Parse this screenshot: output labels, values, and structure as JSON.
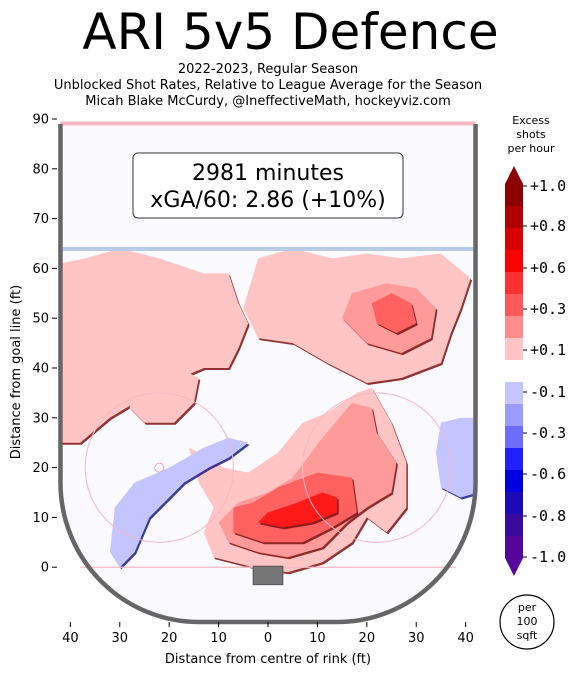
{
  "header": {
    "title": "ARI 5v5 Defence",
    "subtitle_1": "2022-2023, Regular Season",
    "subtitle_2": "Unblocked Shot Rates, Relative to League Average for the Season",
    "subtitle_3": "Micah Blake McCurdy, @IneffectiveMath, hockeyviz.com"
  },
  "annotation": {
    "line_1": "2981 minutes",
    "line_2": "xGA/60: 2.86 (+10%)"
  },
  "colorbar": {
    "title_1": "Excess",
    "title_2": "shots",
    "title_3": "per hour",
    "tick_labels": [
      "+1.0",
      "+0.8",
      "+0.6",
      "+0.3",
      "+0.1",
      "-0.1",
      "-0.3",
      "-0.6",
      "-0.8",
      "-1.0"
    ],
    "unit_1": "per",
    "unit_2": "100",
    "unit_3": "sqft",
    "colors_pos": [
      "#8b0000",
      "#b00000",
      "#d80000",
      "#ff0000",
      "#ff3030",
      "#ff5a5a",
      "#ff8c8c",
      "#ffc4c4"
    ],
    "colors_neg": [
      "#c4c4ff",
      "#9a9aff",
      "#6c6cff",
      "#2020ff",
      "#0000e0",
      "#1a0ab8",
      "#3a0aa0",
      "#55069a"
    ]
  },
  "chart_data": {
    "type": "heatmap",
    "title": "ARI 5v5 Defence",
    "xlabel": "Distance from centre of rink (ft)",
    "ylabel": "Distance from goal line (ft)",
    "xlim": [
      -42.5,
      42.5
    ],
    "ylim": [
      -11,
      90
    ],
    "xticks": [
      -40,
      -30,
      -20,
      -10,
      0,
      10,
      20,
      30,
      40
    ],
    "xtick_labels": [
      "40",
      "30",
      "20",
      "10",
      "0",
      "10",
      "20",
      "30",
      "40"
    ],
    "yticks": [
      0,
      10,
      20,
      30,
      40,
      50,
      60,
      70,
      80,
      90
    ],
    "ytick_labels": [
      "0",
      "10",
      "20",
      "30",
      "40",
      "50",
      "60",
      "70",
      "80",
      "90"
    ],
    "levels": [
      -1.0,
      -0.8,
      -0.6,
      -0.3,
      -0.1,
      0.1,
      0.3,
      0.6,
      0.8,
      1.0
    ],
    "regions": [
      {
        "name": "excess",
        "level": 0.1,
        "color": "#ffc4c4",
        "points": [
          [
            -42,
            61
          ],
          [
            -37,
            62
          ],
          [
            -30,
            64
          ],
          [
            -22,
            62
          ],
          [
            -13,
            59
          ],
          [
            -8,
            59
          ],
          [
            -6,
            53
          ],
          [
            -4,
            49
          ],
          [
            -6,
            44
          ],
          [
            -8,
            40
          ],
          [
            -13,
            40
          ],
          [
            -20,
            37
          ],
          [
            -27,
            33
          ],
          [
            -32,
            30
          ],
          [
            -38,
            25
          ],
          [
            -42,
            25
          ]
        ]
      },
      {
        "name": "excess",
        "level": 0.1,
        "color": "#ffc4c4",
        "points": [
          [
            -2,
            62
          ],
          [
            5,
            64
          ],
          [
            13,
            62
          ],
          [
            20,
            63
          ],
          [
            27,
            62
          ],
          [
            35,
            63
          ],
          [
            41,
            58
          ],
          [
            39,
            52
          ],
          [
            37,
            47
          ],
          [
            35,
            41
          ],
          [
            27,
            38
          ],
          [
            20,
            37
          ],
          [
            12,
            41
          ],
          [
            5,
            45
          ],
          [
            -2,
            46
          ],
          [
            -5,
            52
          ]
        ]
      },
      {
        "name": "excess",
        "level": 0.1,
        "color": "#ffc4c4",
        "points": [
          [
            -16,
            24
          ],
          [
            -12,
            22
          ],
          [
            -9,
            20
          ],
          [
            -4,
            19
          ],
          [
            2,
            23
          ],
          [
            7,
            29
          ],
          [
            12,
            31
          ],
          [
            18,
            35
          ],
          [
            21,
            36
          ],
          [
            25,
            29
          ],
          [
            28,
            21
          ],
          [
            28,
            12
          ],
          [
            24,
            7
          ],
          [
            20,
            10
          ],
          [
            17,
            5
          ],
          [
            11,
            1
          ],
          [
            4,
            -1
          ],
          [
            -3,
            0
          ],
          [
            -11,
            2
          ],
          [
            -13,
            7
          ],
          [
            -11,
            12
          ],
          [
            -14,
            17
          ]
        ]
      },
      {
        "name": "excess",
        "level": 0.1,
        "color": "#ffc4c4",
        "points": [
          [
            -27,
            36
          ],
          [
            -23,
            40
          ],
          [
            -18,
            40
          ],
          [
            -14,
            38
          ],
          [
            -15,
            33
          ],
          [
            -19,
            29
          ],
          [
            -25,
            29
          ],
          [
            -28,
            32
          ]
        ]
      },
      {
        "name": "excess",
        "level": 0.3,
        "color": "#ff9a9a",
        "points": [
          [
            15,
            50
          ],
          [
            17,
            55
          ],
          [
            24,
            57
          ],
          [
            30,
            56
          ],
          [
            34,
            52
          ],
          [
            33,
            46
          ],
          [
            27,
            43
          ],
          [
            20,
            45
          ]
        ]
      },
      {
        "name": "excess",
        "level": 0.3,
        "color": "#ff9a9a",
        "points": [
          [
            11,
            26
          ],
          [
            17,
            33
          ],
          [
            21,
            32
          ],
          [
            22,
            27
          ],
          [
            26,
            21
          ],
          [
            25,
            15
          ],
          [
            20,
            12
          ],
          [
            16,
            9
          ],
          [
            11,
            4
          ],
          [
            4,
            2
          ],
          [
            -2,
            3
          ],
          [
            -8,
            5
          ],
          [
            -10,
            9
          ],
          [
            -6,
            13
          ],
          [
            0,
            15
          ],
          [
            5,
            18
          ]
        ]
      },
      {
        "name": "excess",
        "level": 0.6,
        "color": "#ff6060",
        "points": [
          [
            21,
            53
          ],
          [
            25,
            55
          ],
          [
            29,
            53
          ],
          [
            30,
            49
          ],
          [
            26,
            47
          ],
          [
            22,
            49
          ]
        ]
      },
      {
        "name": "excess",
        "level": 0.6,
        "color": "#ff6060",
        "points": [
          [
            2,
            16
          ],
          [
            10,
            19
          ],
          [
            17,
            18
          ],
          [
            18,
            11
          ],
          [
            13,
            8
          ],
          [
            7,
            5
          ],
          [
            -1,
            5
          ],
          [
            -7,
            7
          ],
          [
            -7,
            12
          ],
          [
            -3,
            13
          ]
        ]
      },
      {
        "name": "excess",
        "level": 0.8,
        "color": "#ff1a1a",
        "points": [
          [
            0,
            11
          ],
          [
            6,
            13
          ],
          [
            11,
            15
          ],
          [
            14,
            14
          ],
          [
            14,
            11
          ],
          [
            9,
            9
          ],
          [
            3,
            8
          ],
          [
            -2,
            9
          ]
        ]
      },
      {
        "name": "deficit",
        "level": -0.1,
        "color": "#c4c4ff",
        "points": [
          [
            -32,
            3
          ],
          [
            -31,
            12
          ],
          [
            -27,
            17
          ],
          [
            -20,
            20
          ],
          [
            -13,
            24
          ],
          [
            -8,
            26
          ],
          [
            -4,
            25
          ],
          [
            -8,
            22
          ],
          [
            -12,
            20
          ],
          [
            -17,
            17
          ],
          [
            -20,
            14
          ],
          [
            -24,
            10
          ],
          [
            -27,
            3
          ],
          [
            -30,
            0
          ]
        ]
      },
      {
        "name": "deficit",
        "level": -0.1,
        "color": "#c4c4ff",
        "points": [
          [
            34,
            23
          ],
          [
            35,
            29
          ],
          [
            39,
            30
          ],
          [
            42.5,
            30
          ],
          [
            42.5,
            15
          ],
          [
            39,
            14
          ],
          [
            35,
            16
          ]
        ]
      }
    ]
  }
}
